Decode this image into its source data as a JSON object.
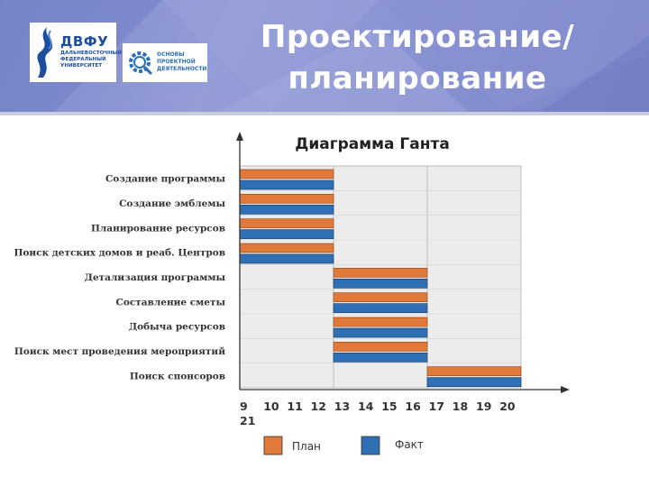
{
  "header": {
    "title_line1": "Проектирование/",
    "title_line2": "планирование",
    "logo_main": {
      "brand": "ДВФУ",
      "sub_line1": "ДАЛЬНЕВОСТОЧНЫЙ",
      "sub_line2": "ФЕДЕРАЛЬНЫЙ",
      "sub_line3": "УНИВЕРСИТЕТ"
    },
    "logo_secondary": {
      "line1": "ОСНОВЫ",
      "line2": "ПРОЕКТНОЙ",
      "line3": "ДЕЯТЕЛЬНОСТИ"
    }
  },
  "colors": {
    "plan": "#e0793a",
    "fact": "#2f6fb3",
    "header": "#8a93d2"
  },
  "chart_data": {
    "type": "bar",
    "title": "Диаграмма Ганта",
    "tasks": [
      "Создание программы",
      "Создание эмблемы",
      "Планирование ресурсов",
      "Поиск детских домов и  реаб. Центров",
      "Детализация программы",
      "Составление сметы",
      "Добыча ресурсов",
      "Поиск мест проведения мероприятий",
      "Поиск спонсоров"
    ],
    "x_ticks": [
      "9",
      "10",
      "11",
      "12",
      "13",
      "14",
      "15",
      "16",
      "17",
      "18",
      "19",
      "20",
      "21"
    ],
    "xlim": [
      9,
      21
    ],
    "series": [
      {
        "name": "План",
        "starts": [
          9,
          9,
          9,
          9,
          13,
          13,
          13,
          13,
          17
        ],
        "ends": [
          13,
          13,
          13,
          13,
          17,
          17,
          17,
          17,
          21
        ]
      },
      {
        "name": "Факт",
        "starts": [
          9,
          9,
          9,
          9,
          13,
          13,
          13,
          13,
          17
        ],
        "ends": [
          13,
          13,
          13,
          13,
          17,
          17,
          17,
          17,
          21
        ]
      }
    ]
  }
}
